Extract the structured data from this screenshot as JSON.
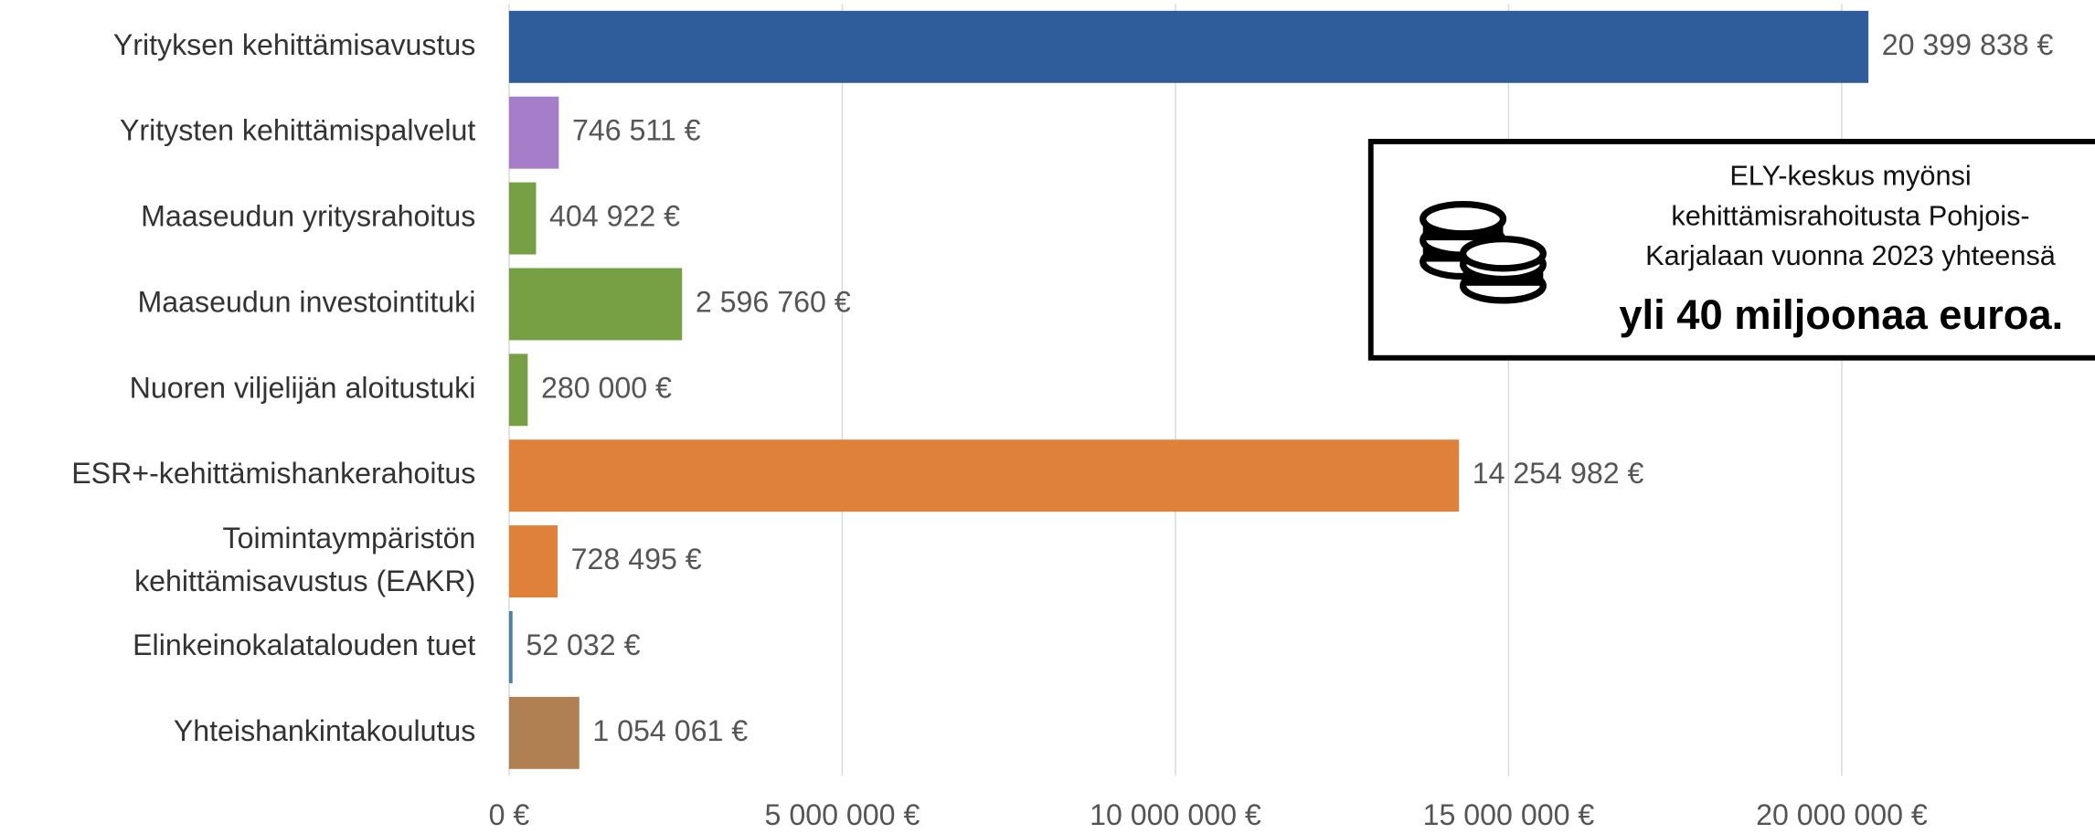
{
  "chart_data": {
    "type": "bar",
    "orientation": "horizontal",
    "categories": [
      "Yrityksen kehittämisavustus",
      "Yritysten kehittämispalvelut",
      "Maaseudun yritysrahoitus",
      "Maaseudun investointituki",
      "Nuoren viljelijän aloitustuki",
      "ESR+-kehittämishankerahoitus",
      "Toimintaympäristön\nkehittämisavustus (EAKR)",
      "Elinkeinokalatalouden tuet",
      "Yhteishankintakoulutus"
    ],
    "values": [
      20399838,
      746511,
      404922,
      2596760,
      280000,
      14254982,
      728495,
      52032,
      1054061
    ],
    "value_labels": [
      "20 399 838 €",
      "746 511 €",
      "404 922 €",
      "2 596 760 €",
      "280 000 €",
      "14 254 982 €",
      "728 495 €",
      "52 032 €",
      "1 054 061 €"
    ],
    "colors": [
      "#2f5d9b",
      "#a57dc9",
      "#77a044",
      "#77a044",
      "#77a044",
      "#e0813b",
      "#e0813b",
      "#4a7fa8",
      "#b07f52"
    ],
    "xlim": [
      0,
      23800000
    ],
    "xticks": [
      {
        "value": 0,
        "label": "0 €"
      },
      {
        "value": 5000000,
        "label": "5 000 000 €"
      },
      {
        "value": 10000000,
        "label": "10 000 000 €"
      },
      {
        "value": 15000000,
        "label": "15 000 000 €"
      },
      {
        "value": 20000000,
        "label": "20 000 000 €"
      }
    ],
    "grid": true,
    "annotation": {
      "text": "ELY-keskus myönsi\nkehittämisrahoitusta Pohjois-\nKarjalaan vuonna 2023 yhteensä",
      "emphasis": "yli 40 miljoonaa euroa."
    }
  }
}
